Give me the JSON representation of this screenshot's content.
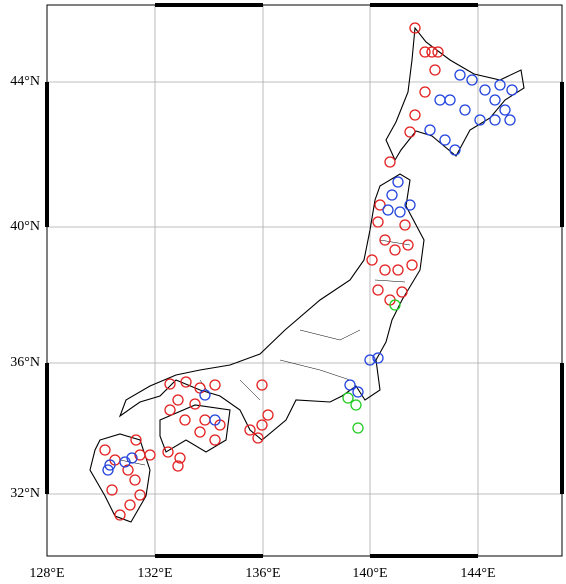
{
  "map": {
    "x_labels": [
      "128°E",
      "132°E",
      "136°E",
      "140°E",
      "144°E"
    ],
    "y_labels": [
      "44°N",
      "40°N",
      "36°N",
      "32°N"
    ]
  }
}
